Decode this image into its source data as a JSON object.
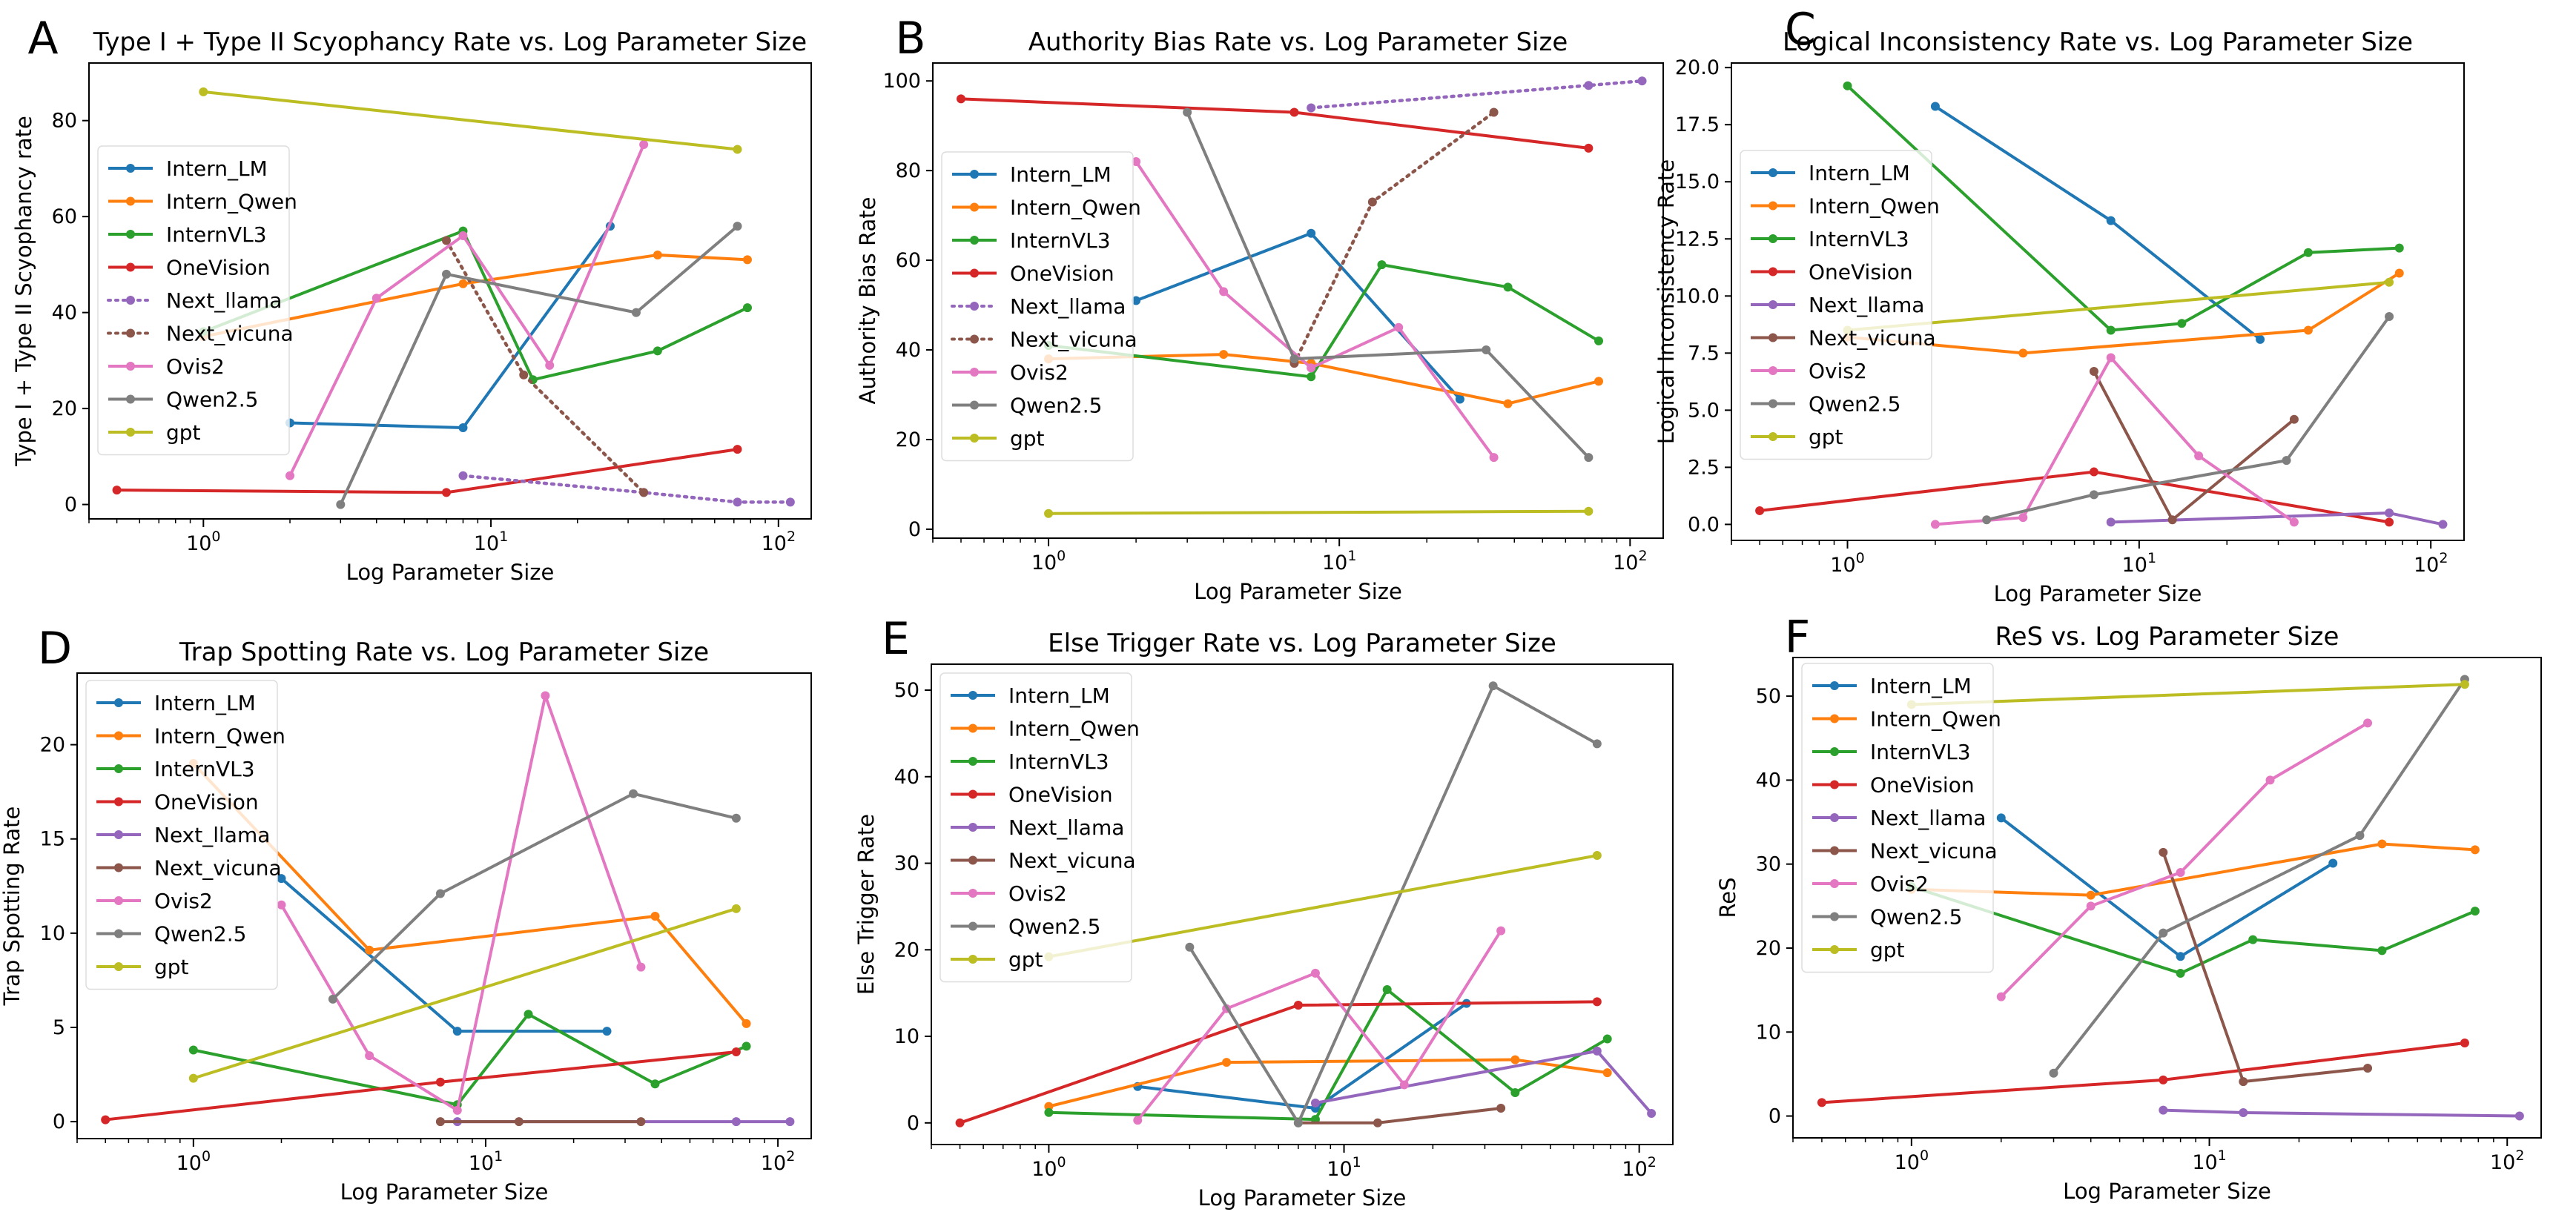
{
  "chart_data": [
    {
      "letter": "A",
      "type": "line",
      "title": "Type I  +  Type II Scyophancy Rate vs. Log Parameter Size",
      "xlabel": "Log Parameter Size",
      "ylabel": "Type I  +  Type II Scyophancy  rate",
      "xscale": "log",
      "xlim": [
        0.4,
        130
      ],
      "ylim": [
        -3,
        92
      ],
      "yticks": [
        0,
        20,
        40,
        60,
        80
      ],
      "legend": "left",
      "series": [
        {
          "name": "Intern_LM",
          "color": "#1f77b4",
          "style": "solid",
          "x": [
            2,
            8,
            26
          ],
          "y": [
            17,
            16,
            58
          ]
        },
        {
          "name": "Intern_Qwen",
          "color": "#ff7f0e",
          "style": "solid",
          "x": [
            1,
            8,
            38,
            78
          ],
          "y": [
            35,
            46,
            52,
            51
          ]
        },
        {
          "name": "InternVL3",
          "color": "#2ca02c",
          "style": "solid",
          "x": [
            1,
            8,
            14,
            38,
            78
          ],
          "y": [
            36,
            57,
            26,
            32,
            41
          ]
        },
        {
          "name": "OneVision",
          "color": "#d62728",
          "style": "solid",
          "x": [
            0.5,
            7,
            72
          ],
          "y": [
            3,
            2.5,
            11.5
          ]
        },
        {
          "name": "Next_llama",
          "color": "#9467bd",
          "style": "dotted",
          "x": [
            8,
            34,
            72,
            110
          ],
          "y": [
            6,
            2.5,
            0.5,
            0.5
          ]
        },
        {
          "name": "Next_vicuna",
          "color": "#8c564b",
          "style": "dotted",
          "x": [
            7,
            13,
            34
          ],
          "y": [
            55,
            27,
            2.5
          ]
        },
        {
          "name": "Ovis2",
          "color": "#e377c2",
          "style": "solid",
          "x": [
            2,
            4,
            8,
            16,
            34
          ],
          "y": [
            6,
            43,
            56,
            29,
            75
          ]
        },
        {
          "name": "Qwen2.5",
          "color": "#7f7f7f",
          "style": "solid",
          "x": [
            3,
            7,
            32,
            72
          ],
          "y": [
            0,
            48,
            40,
            58
          ]
        },
        {
          "name": "gpt",
          "color": "#bcbd22",
          "style": "solid",
          "x": [
            1,
            72
          ],
          "y": [
            86,
            74
          ]
        }
      ]
    },
    {
      "letter": "B",
      "type": "line",
      "title": "Authority Bias Rate vs. Log Parameter Size",
      "xlabel": "Log Parameter Size",
      "ylabel": "Authority Bias Rate",
      "xscale": "log",
      "xlim": [
        0.4,
        130
      ],
      "ylim": [
        -2,
        104
      ],
      "yticks": [
        0,
        20,
        40,
        60,
        80,
        100
      ],
      "legend": "left",
      "series": [
        {
          "name": "Intern_LM",
          "color": "#1f77b4",
          "style": "solid",
          "x": [
            2,
            8,
            26
          ],
          "y": [
            51,
            66,
            29
          ]
        },
        {
          "name": "Intern_Qwen",
          "color": "#ff7f0e",
          "style": "solid",
          "x": [
            1,
            4,
            8,
            38,
            78
          ],
          "y": [
            38,
            39,
            37,
            28,
            33
          ]
        },
        {
          "name": "InternVL3",
          "color": "#2ca02c",
          "style": "solid",
          "x": [
            1,
            8,
            14,
            38,
            78
          ],
          "y": [
            41,
            34,
            59,
            54,
            42
          ]
        },
        {
          "name": "OneVision",
          "color": "#d62728",
          "style": "solid",
          "x": [
            0.5,
            7,
            72
          ],
          "y": [
            96,
            93,
            85
          ]
        },
        {
          "name": "Next_llama",
          "color": "#9467bd",
          "style": "dotted",
          "x": [
            8,
            72,
            110
          ],
          "y": [
            94,
            99,
            100
          ]
        },
        {
          "name": "Next_vicuna",
          "color": "#8c564b",
          "style": "dotted",
          "x": [
            7,
            13,
            34
          ],
          "y": [
            37,
            73,
            93
          ]
        },
        {
          "name": "Ovis2",
          "color": "#e377c2",
          "style": "solid",
          "x": [
            2,
            4,
            8,
            16,
            34
          ],
          "y": [
            82,
            53,
            36,
            45,
            16
          ]
        },
        {
          "name": "Qwen2.5",
          "color": "#7f7f7f",
          "style": "solid",
          "x": [
            3,
            7,
            32,
            72
          ],
          "y": [
            93,
            38,
            40,
            16
          ]
        },
        {
          "name": "gpt",
          "color": "#bcbd22",
          "style": "solid",
          "x": [
            1,
            72
          ],
          "y": [
            3.5,
            4
          ]
        }
      ]
    },
    {
      "letter": "C",
      "type": "line",
      "title": "Logical Inconsistency Rate vs. Log Parameter Size",
      "xlabel": "Log Parameter Size",
      "ylabel": "Logical Inconsistency Rate",
      "xscale": "log",
      "xlim": [
        0.4,
        130
      ],
      "ylim": [
        -0.7,
        20.2
      ],
      "yticks": [
        0.0,
        2.5,
        5.0,
        7.5,
        10.0,
        12.5,
        15.0,
        17.5,
        20.0
      ],
      "legend": "left",
      "series": [
        {
          "name": "Intern_LM",
          "color": "#1f77b4",
          "style": "solid",
          "x": [
            2,
            8,
            26
          ],
          "y": [
            18.3,
            13.3,
            8.1
          ]
        },
        {
          "name": "Intern_Qwen",
          "color": "#ff7f0e",
          "style": "solid",
          "x": [
            1,
            4,
            38,
            78
          ],
          "y": [
            8.2,
            7.5,
            8.5,
            11.0
          ]
        },
        {
          "name": "InternVL3",
          "color": "#2ca02c",
          "style": "solid",
          "x": [
            1,
            8,
            14,
            38,
            78
          ],
          "y": [
            19.2,
            8.5,
            8.8,
            11.9,
            12.1
          ]
        },
        {
          "name": "OneVision",
          "color": "#d62728",
          "style": "solid",
          "x": [
            0.5,
            7,
            72
          ],
          "y": [
            0.6,
            2.3,
            0.1
          ]
        },
        {
          "name": "Next_llama",
          "color": "#9467bd",
          "style": "solid",
          "x": [
            8,
            72,
            110
          ],
          "y": [
            0.1,
            0.5,
            0.0
          ]
        },
        {
          "name": "Next_vicuna",
          "color": "#8c564b",
          "style": "solid",
          "x": [
            7,
            13,
            34
          ],
          "y": [
            6.7,
            0.2,
            4.6
          ]
        },
        {
          "name": "Ovis2",
          "color": "#e377c2",
          "style": "solid",
          "x": [
            2,
            4,
            8,
            16,
            34
          ],
          "y": [
            0.0,
            0.3,
            7.3,
            3.0,
            0.1
          ]
        },
        {
          "name": "Qwen2.5",
          "color": "#7f7f7f",
          "style": "solid",
          "x": [
            3,
            7,
            32,
            72
          ],
          "y": [
            0.2,
            1.3,
            2.8,
            9.1
          ]
        },
        {
          "name": "gpt",
          "color": "#bcbd22",
          "style": "solid",
          "x": [
            1,
            72
          ],
          "y": [
            8.5,
            10.6
          ]
        }
      ]
    },
    {
      "letter": "D",
      "type": "line",
      "title": "Trap Spotting Rate vs. Log Parameter Size",
      "xlabel": "Log Parameter Size",
      "ylabel": "Trap Spotting Rate",
      "xscale": "log",
      "xlim": [
        0.4,
        130
      ],
      "ylim": [
        -0.9,
        23.8
      ],
      "yticks": [
        0,
        5,
        10,
        15,
        20
      ],
      "legend": "left",
      "series": [
        {
          "name": "Intern_LM",
          "color": "#1f77b4",
          "style": "solid",
          "x": [
            2,
            8,
            26
          ],
          "y": [
            12.9,
            4.8,
            4.8
          ]
        },
        {
          "name": "Intern_Qwen",
          "color": "#ff7f0e",
          "style": "solid",
          "x": [
            1,
            4,
            38,
            78
          ],
          "y": [
            19.0,
            9.1,
            10.9,
            5.2
          ]
        },
        {
          "name": "InternVL3",
          "color": "#2ca02c",
          "style": "solid",
          "x": [
            1,
            8,
            14,
            38,
            78
          ],
          "y": [
            3.8,
            0.9,
            5.7,
            2.0,
            4.0
          ]
        },
        {
          "name": "OneVision",
          "color": "#d62728",
          "style": "solid",
          "x": [
            0.5,
            7,
            72
          ],
          "y": [
            0.1,
            2.1,
            3.7
          ]
        },
        {
          "name": "Next_llama",
          "color": "#9467bd",
          "style": "solid",
          "x": [
            8,
            72,
            110
          ],
          "y": [
            0.0,
            0.0,
            0.0
          ]
        },
        {
          "name": "Next_vicuna",
          "color": "#8c564b",
          "style": "solid",
          "x": [
            7,
            13,
            34
          ],
          "y": [
            0.0,
            0.0,
            0.0
          ]
        },
        {
          "name": "Ovis2",
          "color": "#e377c2",
          "style": "solid",
          "x": [
            2,
            4,
            8,
            16,
            34
          ],
          "y": [
            11.5,
            3.5,
            0.6,
            22.6,
            8.2
          ]
        },
        {
          "name": "Qwen2.5",
          "color": "#7f7f7f",
          "style": "solid",
          "x": [
            3,
            7,
            32,
            72
          ],
          "y": [
            6.5,
            12.1,
            17.4,
            16.1
          ]
        },
        {
          "name": "gpt",
          "color": "#bcbd22",
          "style": "solid",
          "x": [
            1,
            72
          ],
          "y": [
            2.3,
            11.3
          ]
        }
      ]
    },
    {
      "letter": "E",
      "type": "line",
      "title": "Else Trigger Rate vs. Log Parameter Size",
      "xlabel": "Log Parameter Size",
      "ylabel": "Else Trigger Rate",
      "xscale": "log",
      "xlim": [
        0.4,
        130
      ],
      "ylim": [
        -2.5,
        53
      ],
      "yticks": [
        0,
        10,
        20,
        30,
        40,
        50
      ],
      "legend": "left",
      "series": [
        {
          "name": "Intern_LM",
          "color": "#1f77b4",
          "style": "solid",
          "x": [
            2,
            8,
            26
          ],
          "y": [
            4.2,
            1.7,
            13.8
          ]
        },
        {
          "name": "Intern_Qwen",
          "color": "#ff7f0e",
          "style": "solid",
          "x": [
            1,
            4,
            38,
            78
          ],
          "y": [
            1.9,
            7.0,
            7.3,
            5.8
          ]
        },
        {
          "name": "InternVL3",
          "color": "#2ca02c",
          "style": "solid",
          "x": [
            1,
            8,
            14,
            38,
            78
          ],
          "y": [
            1.2,
            0.4,
            15.4,
            3.5,
            9.7
          ]
        },
        {
          "name": "OneVision",
          "color": "#d62728",
          "style": "solid",
          "x": [
            0.5,
            7,
            72
          ],
          "y": [
            0.0,
            13.6,
            14.0
          ]
        },
        {
          "name": "Next_llama",
          "color": "#9467bd",
          "style": "solid",
          "x": [
            8,
            72,
            110
          ],
          "y": [
            2.3,
            8.3,
            1.1
          ]
        },
        {
          "name": "Next_vicuna",
          "color": "#8c564b",
          "style": "solid",
          "x": [
            7,
            13,
            34
          ],
          "y": [
            0.0,
            0.0,
            1.7
          ]
        },
        {
          "name": "Ovis2",
          "color": "#e377c2",
          "style": "solid",
          "x": [
            2,
            4,
            8,
            16,
            34
          ],
          "y": [
            0.3,
            13.2,
            17.3,
            4.4,
            22.2
          ]
        },
        {
          "name": "Qwen2.5",
          "color": "#7f7f7f",
          "style": "solid",
          "x": [
            3,
            7,
            32,
            72
          ],
          "y": [
            20.3,
            0.0,
            50.5,
            43.8
          ]
        },
        {
          "name": "gpt",
          "color": "#bcbd22",
          "style": "solid",
          "x": [
            1,
            72
          ],
          "y": [
            19.2,
            30.9
          ]
        }
      ]
    },
    {
      "letter": "F",
      "type": "line",
      "title": "ReS vs. Log Parameter Size",
      "xlabel": "Log Parameter Size",
      "ylabel": "ReS",
      "xscale": "log",
      "xlim": [
        0.4,
        130
      ],
      "ylim": [
        -2.6,
        54.6
      ],
      "yticks": [
        0,
        10,
        20,
        30,
        40,
        50
      ],
      "legend": "left",
      "series": [
        {
          "name": "Intern_LM",
          "color": "#1f77b4",
          "style": "solid",
          "x": [
            2,
            8,
            26
          ],
          "y": [
            35.5,
            19.0,
            30.1
          ]
        },
        {
          "name": "Intern_Qwen",
          "color": "#ff7f0e",
          "style": "solid",
          "x": [
            1,
            4,
            38,
            78
          ],
          "y": [
            27.0,
            26.3,
            32.4,
            31.7
          ]
        },
        {
          "name": "InternVL3",
          "color": "#2ca02c",
          "style": "solid",
          "x": [
            1,
            8,
            14,
            38,
            78
          ],
          "y": [
            27.3,
            17.0,
            21.0,
            19.7,
            24.4
          ]
        },
        {
          "name": "OneVision",
          "color": "#d62728",
          "style": "solid",
          "x": [
            0.5,
            7,
            72
          ],
          "y": [
            1.6,
            4.3,
            8.7
          ]
        },
        {
          "name": "Next_llama",
          "color": "#9467bd",
          "style": "solid",
          "x": [
            7,
            13,
            110
          ],
          "y": [
            0.7,
            0.4,
            0.0
          ]
        },
        {
          "name": "Next_vicuna",
          "color": "#8c564b",
          "style": "solid",
          "x": [
            7,
            13,
            34
          ],
          "y": [
            31.4,
            4.1,
            5.7
          ]
        },
        {
          "name": "Ovis2",
          "color": "#e377c2",
          "style": "solid",
          "x": [
            2,
            4,
            8,
            16,
            34
          ],
          "y": [
            14.2,
            25.0,
            29.0,
            40.0,
            46.8
          ]
        },
        {
          "name": "Qwen2.5",
          "color": "#7f7f7f",
          "style": "solid",
          "x": [
            3,
            7,
            32,
            72
          ],
          "y": [
            5.1,
            21.8,
            33.4,
            52.0
          ]
        },
        {
          "name": "gpt",
          "color": "#bcbd22",
          "style": "solid",
          "x": [
            1,
            72
          ],
          "y": [
            49.0,
            51.4
          ]
        }
      ]
    }
  ]
}
